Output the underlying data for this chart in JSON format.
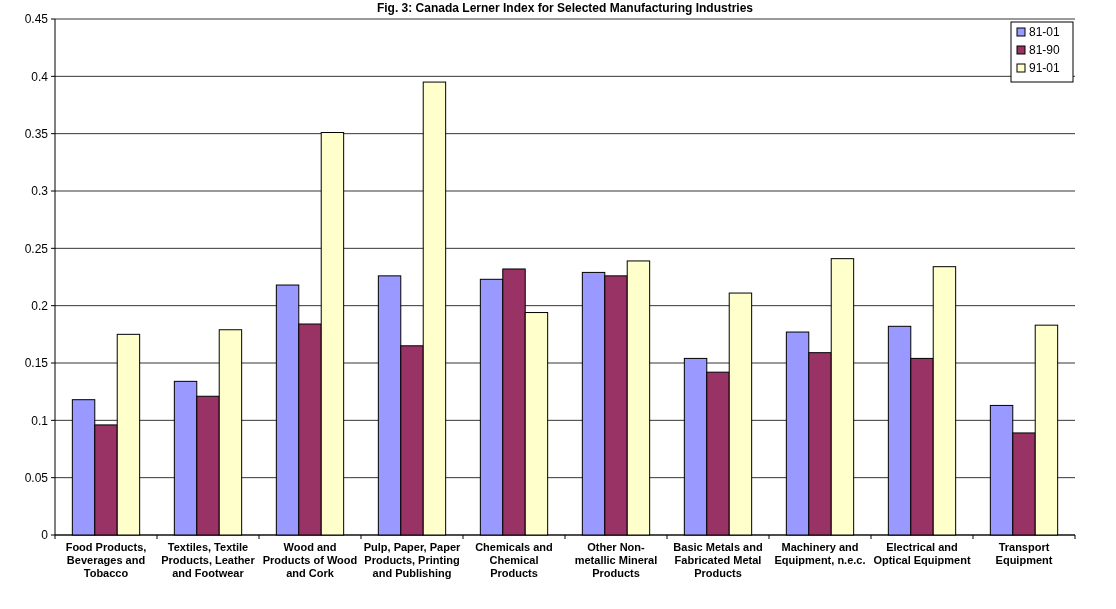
{
  "chart_data": {
    "type": "bar",
    "title": "Fig. 3: Canada Lerner Index for Selected Manufacturing Industries",
    "categories": [
      "Food Products, Beverages and Tobacco",
      "Textiles, Textile Products, Leather and Footwear",
      "Wood and Products of Wood and Cork",
      "Pulp, Paper, Paper Products, Printing and Publishing",
      "Chemicals and Chemical Products",
      "Other Non-metallic Mineral Products",
      "Basic Metals and Fabricated Metal Products",
      "Machinery and Equipment, n.e.c.",
      "Electrical and Optical Equipment",
      "Transport Equipment"
    ],
    "series": [
      {
        "name": "81-01",
        "color": "#9999ff",
        "values": [
          0.118,
          0.134,
          0.218,
          0.226,
          0.223,
          0.229,
          0.154,
          0.177,
          0.182,
          0.113
        ]
      },
      {
        "name": "81-90",
        "color": "#993366",
        "values": [
          0.096,
          0.121,
          0.184,
          0.165,
          0.232,
          0.226,
          0.142,
          0.159,
          0.154,
          0.089
        ]
      },
      {
        "name": "91-01",
        "color": "#ffffcc",
        "values": [
          0.175,
          0.179,
          0.351,
          0.395,
          0.194,
          0.239,
          0.211,
          0.241,
          0.234,
          0.183
        ]
      }
    ],
    "ylim": [
      0,
      0.45
    ],
    "yticks": [
      0,
      0.05,
      0.1,
      0.15,
      0.2,
      0.25,
      0.3,
      0.35,
      0.4,
      0.45
    ],
    "grid": "y",
    "legend": "top right"
  }
}
